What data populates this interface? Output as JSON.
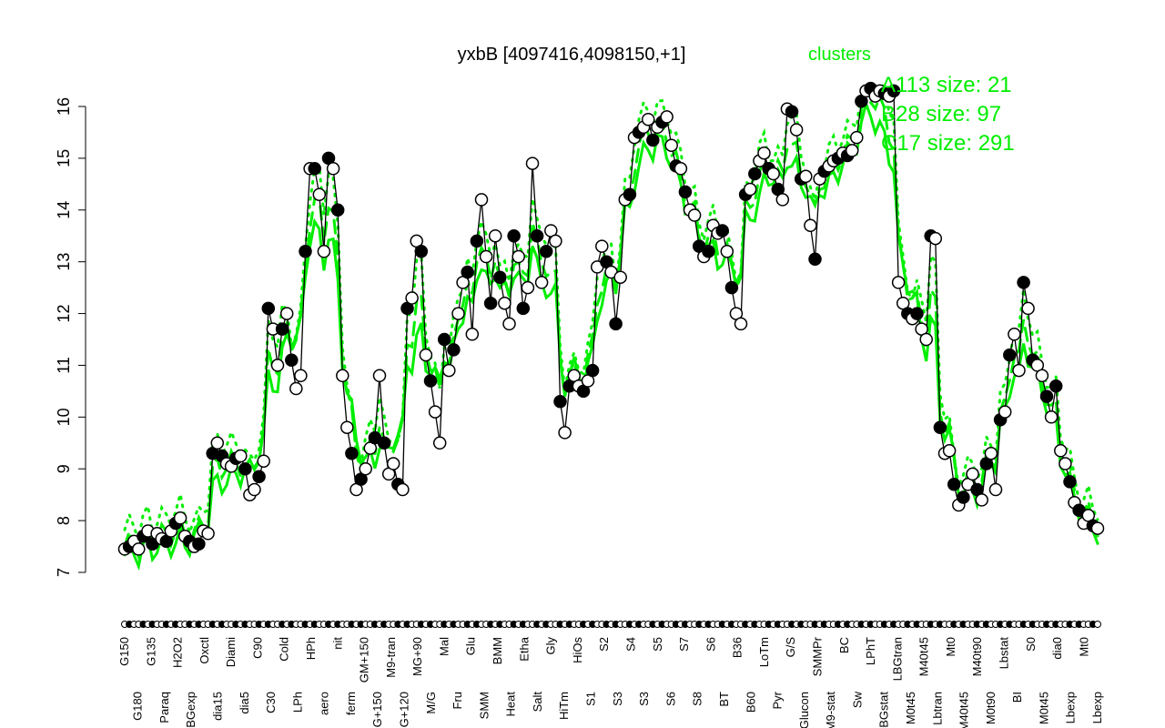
{
  "chart_data": {
    "type": "line",
    "title": "yxbB [4097416,4098150,+1]",
    "xlabel": "",
    "ylabel": "",
    "ylim": [
      7,
      16.3
    ],
    "yticks": [
      7,
      8,
      9,
      10,
      11,
      12,
      13,
      14,
      15,
      16
    ],
    "grid": false,
    "legend_position": "top-right",
    "legend": {
      "title": "clusters",
      "entries": [
        {
          "label": "A113 size: 21",
          "style": "dotted",
          "color": "#00ee00"
        },
        {
          "label": "B28 size: 97",
          "style": "dashed",
          "color": "#00ee00"
        },
        {
          "label": "C17 size: 291",
          "style": "solid",
          "color": "#00ee00"
        }
      ]
    },
    "x_tick_labels_visible": [
      "G150",
      "G180",
      "G135",
      "Paraq",
      "H2O2",
      "LBGexp",
      "Oxctl",
      "dia15",
      "Diami",
      "dia5",
      "C90",
      "C30",
      "Cold",
      "LPh",
      "HPh",
      "aero",
      "nit",
      "ferm",
      "GM+150",
      "MG+150",
      "M9-tran",
      "MG+120",
      "MG+90",
      "M/G",
      "Mal",
      "Fru",
      "Glu",
      "SMM",
      "BMM",
      "Heat",
      "Etha",
      "Salt",
      "Gly",
      "HiTm",
      "HiOs",
      "S1",
      "S2",
      "S3",
      "S4",
      "S3",
      "S5",
      "S6",
      "S7",
      "S8",
      "S6",
      "BT",
      "B36",
      "B60",
      "LoTm",
      "Pyr",
      "G/S",
      "Glucon",
      "SMMPr",
      "M9-stat",
      "BC",
      "Sw",
      "LPhT",
      "LBGstat",
      "LBGtran",
      "M0t45",
      "M40t45",
      "Lbtran",
      "Mt0",
      "M40t45",
      "M40t90",
      "M0t90",
      "Lbstat",
      "BI",
      "S0",
      "M0t45",
      "dia0",
      "Lbexp",
      "Mt0",
      "Lbexp"
    ],
    "series": [
      {
        "name": "yxbB expression",
        "color": "#000000",
        "values": [
          7.45,
          7.5,
          7.6,
          7.45,
          7.7,
          7.8,
          7.55,
          7.75,
          7.65,
          7.6,
          7.8,
          7.95,
          8.05,
          7.7,
          7.6,
          7.5,
          7.55,
          7.8,
          7.75,
          9.3,
          9.5,
          9.25,
          9.1,
          9.05,
          9.2,
          9.25,
          9.0,
          8.5,
          8.6,
          8.85,
          9.15,
          12.1,
          11.7,
          11.0,
          11.7,
          12.0,
          11.1,
          10.55,
          10.8,
          13.2,
          14.8,
          14.8,
          14.3,
          13.2,
          15.0,
          14.8,
          14.0,
          10.8,
          9.8,
          9.3,
          8.6,
          8.8,
          9.0,
          9.4,
          9.6,
          10.8,
          9.5,
          8.9,
          9.1,
          8.7,
          8.6,
          12.1,
          12.3,
          13.4,
          13.2,
          11.2,
          10.7,
          10.1,
          9.5,
          11.5,
          10.9,
          11.3,
          12.0,
          12.6,
          12.8,
          11.6,
          13.4,
          14.2,
          13.1,
          12.2,
          13.5,
          12.7,
          12.2,
          11.8,
          13.5,
          13.1,
          12.1,
          12.5,
          14.9,
          13.5,
          12.6,
          13.2,
          13.6,
          13.4,
          10.3,
          9.7,
          10.6,
          10.8,
          10.6,
          10.5,
          10.7,
          10.9,
          12.9,
          13.3,
          13.0,
          12.8,
          11.8,
          12.7,
          14.2,
          14.3,
          15.4,
          15.5,
          15.6,
          15.75,
          15.35,
          15.6,
          15.7,
          15.8,
          15.25,
          14.85,
          14.8,
          14.35,
          14.0,
          13.9,
          13.3,
          13.1,
          13.2,
          13.7,
          13.55,
          13.6,
          13.2,
          12.5,
          12.0,
          11.8,
          14.3,
          14.4,
          14.7,
          14.95,
          15.1,
          14.8,
          14.7,
          14.4,
          14.2,
          15.95,
          15.9,
          15.55,
          14.6,
          14.65,
          13.7,
          13.05,
          14.6,
          14.75,
          14.85,
          14.95,
          15.0,
          15.1,
          15.05,
          15.15,
          15.4,
          16.1,
          16.3,
          16.35,
          16.2,
          16.3,
          16.25,
          16.2,
          16.3,
          12.6,
          12.2,
          12.0,
          11.9,
          12.0,
          11.7,
          11.5,
          13.5,
          13.45,
          9.8,
          9.3,
          9.35,
          8.7,
          8.3,
          8.45,
          8.7,
          8.9,
          8.6,
          8.4,
          9.1,
          9.3,
          8.6,
          9.95,
          10.1,
          11.2,
          11.6,
          10.9,
          12.6,
          12.1,
          11.1,
          11.0,
          10.8,
          10.4,
          10.0,
          10.6,
          9.35,
          9.1,
          8.75,
          8.35,
          8.2,
          7.95,
          8.1,
          7.9,
          7.85
        ]
      },
      {
        "name": "C17 (solid)",
        "color": "#00ee00",
        "values_approx": "cluster centroid, lies ~0.5-1 above data on left, below data mid-plot"
      }
    ]
  }
}
